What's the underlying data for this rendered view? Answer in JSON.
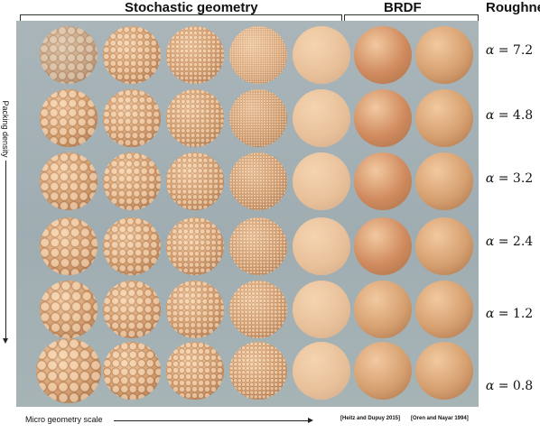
{
  "headers": {
    "stochastic": "Stochastic geometry",
    "brdf": "BRDF",
    "roughness": "Roughness"
  },
  "axes": {
    "ylabel": "Packing density",
    "xlabel": "Micro geometry scale"
  },
  "citations": [
    "[Heitz and Dupuy 2015]",
    "[Oren and Nayar 1994]"
  ],
  "alpha_symbol": "α",
  "alpha_equals": "=",
  "alpha_values": [
    "7.2",
    "4.8",
    "3.2",
    "2.4",
    "1.2",
    "0.8"
  ],
  "colors": {
    "background": "#a4b2b6",
    "sphere_light": "#f2c9a0",
    "sphere_mid": "#d6a070",
    "sphere_dark": "#a8724a"
  }
}
